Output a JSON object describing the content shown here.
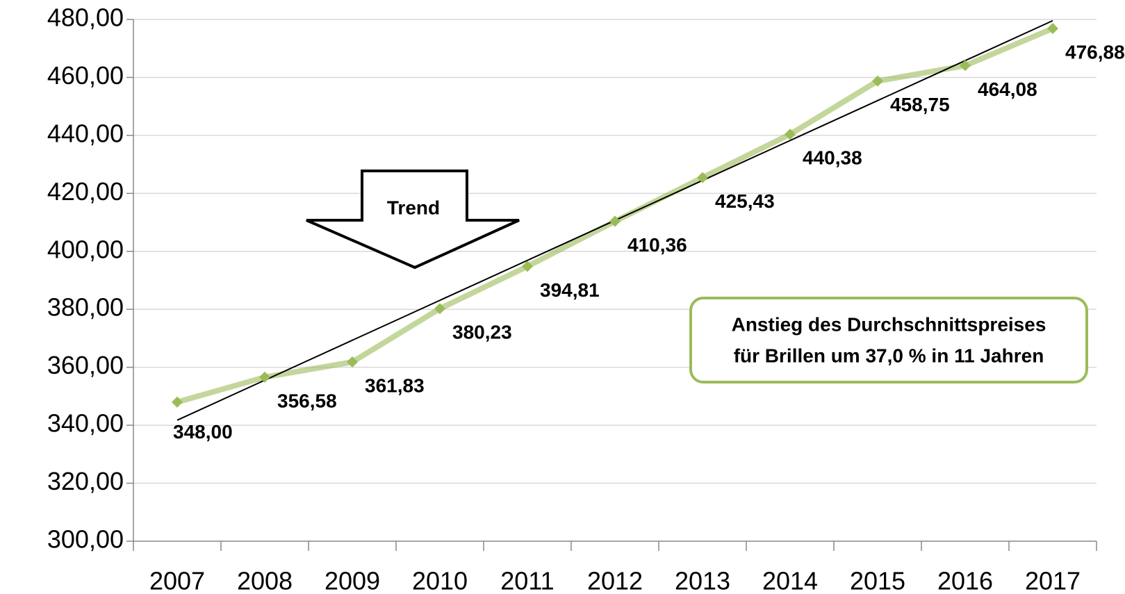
{
  "chart_data": {
    "type": "line",
    "categories": [
      "2007",
      "2008",
      "2009",
      "2010",
      "2011",
      "2012",
      "2013",
      "2014",
      "2015",
      "2016",
      "2017"
    ],
    "series": [
      {
        "color": "#9bbb59",
        "values": [
          348.0,
          356.58,
          361.83,
          380.23,
          394.81,
          410.36,
          425.43,
          440.38,
          458.75,
          464.08,
          476.88
        ],
        "value_labels": [
          "348,00",
          "356,58",
          "361,83",
          "380,23",
          "394,81",
          "410,36",
          "425,43",
          "440,38",
          "458,75",
          "464,08",
          "476,88"
        ]
      }
    ],
    "ylim": [
      300,
      480
    ],
    "yticks": [
      {
        "value": 300,
        "label": "300,00"
      },
      {
        "value": 320,
        "label": "320,00"
      },
      {
        "value": 340,
        "label": "340,00"
      },
      {
        "value": 360,
        "label": "360,00"
      },
      {
        "value": 380,
        "label": "380,00"
      },
      {
        "value": 400,
        "label": "400,00"
      },
      {
        "value": 420,
        "label": "420,00"
      },
      {
        "value": 440,
        "label": "440,00"
      },
      {
        "value": 460,
        "label": "460,00"
      },
      {
        "value": 480,
        "label": "480,00"
      }
    ],
    "grid": true,
    "trendline": true,
    "annotations": {
      "arrow_text": "Trend",
      "box_lines": [
        "Anstieg des Durchschnittspreises",
        "für Brillen um 37,0 % in 11 Jahren"
      ]
    }
  }
}
